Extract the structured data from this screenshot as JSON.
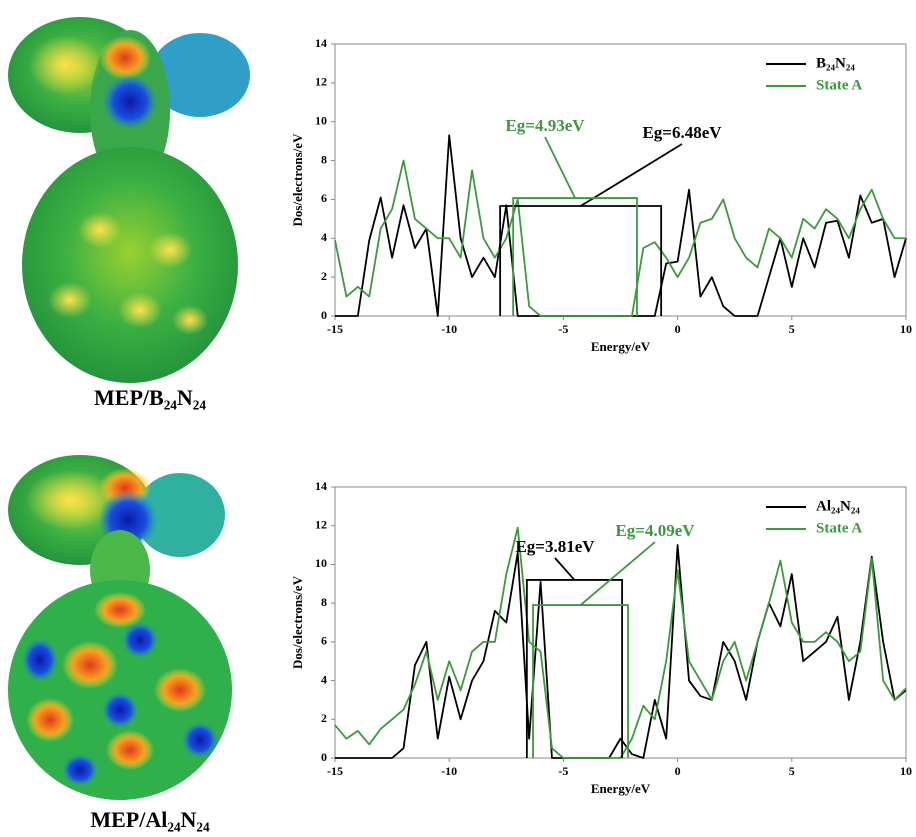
{
  "images": [
    {
      "caption": "MEP/B₂₄N₂₄"
    },
    {
      "caption": "MEP/Al₂₄N₂₄"
    }
  ],
  "chart_data": [
    {
      "type": "line",
      "xlabel": "Energy/eV",
      "ylabel": "Dos/electrons/eV",
      "xlim": [
        -15,
        10
      ],
      "ylim": [
        0,
        14
      ],
      "xticks": [
        -15,
        -10,
        -5,
        0,
        5,
        10
      ],
      "yticks": [
        0,
        2,
        4,
        6,
        8,
        10,
        12,
        14
      ],
      "legend": "upper right",
      "x": [
        -15,
        -14.5,
        -14,
        -13.5,
        -13,
        -12.5,
        -12,
        -11.5,
        -11,
        -10.5,
        -10,
        -9.5,
        -9,
        -8.5,
        -8,
        -7.5,
        -7,
        -6.5,
        -6,
        -5.5,
        -5,
        -4.5,
        -4,
        -3.5,
        -3,
        -2.5,
        -2,
        -1.5,
        -1,
        -0.5,
        0,
        0.5,
        1,
        1.5,
        2,
        2.5,
        3,
        3.5,
        4,
        4.5,
        5,
        5.5,
        6,
        6.5,
        7,
        7.5,
        8,
        8.5,
        9,
        9.5,
        10
      ],
      "series": [
        {
          "name": "B₂₄N₂₄",
          "color": "#000000",
          "values": [
            0,
            0,
            0,
            3.9,
            6.1,
            3,
            5.7,
            3.5,
            4.5,
            0,
            9.3,
            4,
            2,
            3,
            2,
            5.7,
            0,
            0,
            0,
            0,
            0,
            0,
            0,
            0,
            0,
            0,
            0,
            0,
            0,
            2.7,
            2.8,
            6.5,
            1,
            2,
            0.5,
            0,
            0,
            0,
            2,
            4,
            1.5,
            4,
            2.5,
            4.8,
            4.9,
            3,
            6.2,
            4.8,
            5,
            2,
            4
          ]
        },
        {
          "name": "State A",
          "color": "#3a9a3c",
          "values": [
            3.9,
            1,
            1.5,
            1,
            4.5,
            5.5,
            8,
            5,
            4.5,
            4,
            4,
            3,
            7.5,
            4,
            3,
            4,
            6,
            0.5,
            0,
            0,
            0,
            0,
            0,
            0,
            0,
            0,
            0,
            3.5,
            3.8,
            3,
            2,
            3,
            4.8,
            5,
            6,
            4,
            3,
            2.5,
            4.5,
            4,
            3,
            5,
            4.5,
            5.5,
            5,
            4,
            5.5,
            6.5,
            5,
            4,
            4
          ]
        }
      ],
      "gaps": [
        {
          "label": "Eg=6.48eV",
          "color": "#000000",
          "x0": -7.77,
          "x1": -0.72,
          "height": 5.66
        },
        {
          "label": "Eg=4.93eV",
          "color": "#3a9a3c",
          "x0": -7.2,
          "x1": -1.78,
          "height": 6.07
        }
      ]
    },
    {
      "type": "line",
      "xlabel": "Energy/eV",
      "ylabel": "Dos/electrons/eV",
      "xlim": [
        -15,
        10
      ],
      "ylim": [
        0,
        14
      ],
      "xticks": [
        -15,
        -10,
        -5,
        0,
        5,
        10
      ],
      "yticks": [
        0,
        2,
        4,
        6,
        8,
        10,
        12,
        14
      ],
      "legend": "upper right",
      "x": [
        -15,
        -14.5,
        -14,
        -13.5,
        -13,
        -12.5,
        -12,
        -11.5,
        -11,
        -10.5,
        -10,
        -9.5,
        -9,
        -8.5,
        -8,
        -7.5,
        -7,
        -6.5,
        -6,
        -5.5,
        -5,
        -4.5,
        -4,
        -3.5,
        -3,
        -2.5,
        -2,
        -1.5,
        -1,
        -0.5,
        0,
        0.5,
        1,
        1.5,
        2,
        2.5,
        3,
        3.5,
        4,
        4.5,
        5,
        5.5,
        6,
        6.5,
        7,
        7.5,
        8,
        8.5,
        9,
        9.5,
        10
      ],
      "series": [
        {
          "name": "Al₂₄N₂₄",
          "color": "#000000",
          "values": [
            0,
            0,
            0,
            0,
            0,
            0,
            0.5,
            4.8,
            6,
            1,
            4.2,
            2,
            4,
            5,
            7.6,
            7,
            10.6,
            1,
            9.1,
            0,
            0,
            0,
            0,
            0,
            0,
            1,
            0.2,
            0,
            3,
            1,
            11,
            4,
            3.2,
            3,
            6,
            5,
            3,
            6,
            8,
            6.8,
            9.5,
            5,
            5.5,
            6,
            7.3,
            3,
            6,
            10.4,
            6,
            3,
            3.5
          ]
        },
        {
          "name": "State A",
          "color": "#3a9a3c",
          "values": [
            1.7,
            1,
            1.4,
            0.7,
            1.5,
            2,
            2.5,
            3.8,
            5.5,
            3,
            5,
            3.5,
            5.5,
            6,
            6,
            9.5,
            11.9,
            6,
            5.5,
            0.5,
            0,
            0,
            0,
            0,
            0,
            0,
            1,
            2.7,
            2,
            5,
            9.7,
            5,
            4,
            3,
            5,
            6,
            4,
            6,
            8,
            10.2,
            7,
            6,
            6,
            6.5,
            6,
            5,
            5.5,
            10.3,
            4,
            3,
            3.6
          ]
        }
      ],
      "gaps": [
        {
          "label": "Eg=3.81eV",
          "color": "#000000",
          "x0": -6.6,
          "x1": -2.43,
          "height": 9.2
        },
        {
          "label": "Eg=4.09eV",
          "color": "#3a9a3c",
          "x0": -6.33,
          "x1": -2.17,
          "height": 7.9
        }
      ]
    }
  ]
}
